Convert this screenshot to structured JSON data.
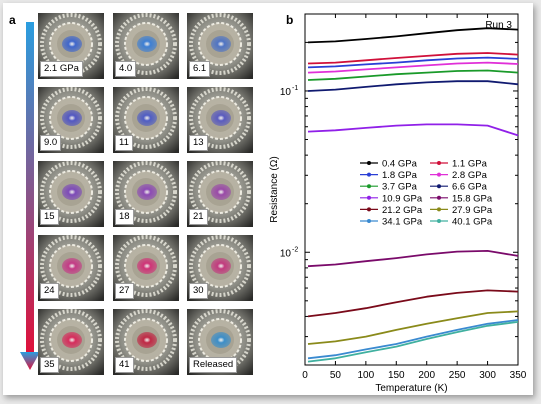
{
  "panel_a": {
    "label": "a",
    "tiles": [
      {
        "label": "2.1 GPa",
        "color": "#3f66cc"
      },
      {
        "label": "4.0",
        "color": "#3d7fd4"
      },
      {
        "label": "6.1",
        "color": "#4f74c4"
      },
      {
        "label": "9.0",
        "color": "#5257c2"
      },
      {
        "label": "11",
        "color": "#4f5dc4"
      },
      {
        "label": "13",
        "color": "#5a5bbf"
      },
      {
        "label": "15",
        "color": "#7d4ab8"
      },
      {
        "label": "18",
        "color": "#8c4ab4"
      },
      {
        "label": "21",
        "color": "#9a4aa8"
      },
      {
        "label": "24",
        "color": "#c43a86"
      },
      {
        "label": "27",
        "color": "#cf3377"
      },
      {
        "label": "30",
        "color": "#c23a7e"
      },
      {
        "label": "35",
        "color": "#d62c5c"
      },
      {
        "label": "41",
        "color": "#c02845"
      },
      {
        "label": "Released",
        "color": "#3c8ec8"
      }
    ]
  },
  "chart_data": {
    "label": "b",
    "type": "line",
    "run_label": "Run 3",
    "xlabel": "Temperature (K)",
    "ylabel": "Resistance (Ω)",
    "xlim": [
      0,
      350
    ],
    "ylim_log": [
      0.002,
      0.3
    ],
    "y_scale": "log",
    "x_ticks": [
      0,
      50,
      100,
      150,
      200,
      250,
      300,
      350
    ],
    "y_ticks": [
      {
        "value": 0.01,
        "base": "10",
        "exp": "-2"
      },
      {
        "value": 0.1,
        "base": "10",
        "exp": "-1"
      }
    ],
    "legend_position": "center-right",
    "x": [
      5,
      50,
      100,
      150,
      200,
      250,
      300,
      350
    ],
    "series": [
      {
        "name": "0.4 GPa",
        "color": "#000000",
        "values": [
          0.2,
          0.203,
          0.21,
          0.218,
          0.228,
          0.238,
          0.245,
          0.24
        ]
      },
      {
        "name": "1.1 GPa",
        "color": "#d0103a",
        "values": [
          0.148,
          0.15,
          0.155,
          0.16,
          0.165,
          0.17,
          0.172,
          0.168
        ]
      },
      {
        "name": "1.8 GPa",
        "color": "#2a3fd6",
        "values": [
          0.14,
          0.142,
          0.146,
          0.15,
          0.155,
          0.159,
          0.161,
          0.158
        ]
      },
      {
        "name": "2.8 GPa",
        "color": "#e030d8",
        "values": [
          0.13,
          0.132,
          0.136,
          0.14,
          0.144,
          0.148,
          0.15,
          0.147
        ]
      },
      {
        "name": "3.7 GPa",
        "color": "#1a9a2a",
        "values": [
          0.117,
          0.119,
          0.123,
          0.127,
          0.13,
          0.133,
          0.134,
          0.13
        ]
      },
      {
        "name": "6.6 GPa",
        "color": "#101a70",
        "values": [
          0.1,
          0.102,
          0.106,
          0.11,
          0.113,
          0.115,
          0.115,
          0.11
        ]
      },
      {
        "name": "10.9 GPa",
        "color": "#9020e8",
        "values": [
          0.056,
          0.057,
          0.059,
          0.061,
          0.062,
          0.062,
          0.061,
          0.053
        ]
      },
      {
        "name": "15.8 GPa",
        "color": "#7a0a6a",
        "values": [
          0.0082,
          0.0084,
          0.0088,
          0.0092,
          0.0097,
          0.0101,
          0.0102,
          0.0095
        ]
      },
      {
        "name": "21.2 GPa",
        "color": "#7a0a1a",
        "values": [
          0.004,
          0.0042,
          0.0045,
          0.0049,
          0.0053,
          0.0056,
          0.0058,
          0.0057
        ]
      },
      {
        "name": "27.9 GPa",
        "color": "#8a8a1a",
        "values": [
          0.0027,
          0.0028,
          0.003,
          0.0033,
          0.0036,
          0.0039,
          0.0042,
          0.0043
        ]
      },
      {
        "name": "34.1 GPa",
        "color": "#3a8ad0",
        "values": [
          0.0022,
          0.0023,
          0.0025,
          0.0027,
          0.003,
          0.0033,
          0.0036,
          0.0038
        ]
      },
      {
        "name": "40.1 GPa",
        "color": "#40b0a0",
        "values": [
          0.0021,
          0.0022,
          0.0024,
          0.0026,
          0.0029,
          0.0032,
          0.0035,
          0.0037
        ]
      }
    ]
  },
  "colors": {
    "arrow_top": "#2a9ee0",
    "arrow_bottom": "#e0103a"
  }
}
